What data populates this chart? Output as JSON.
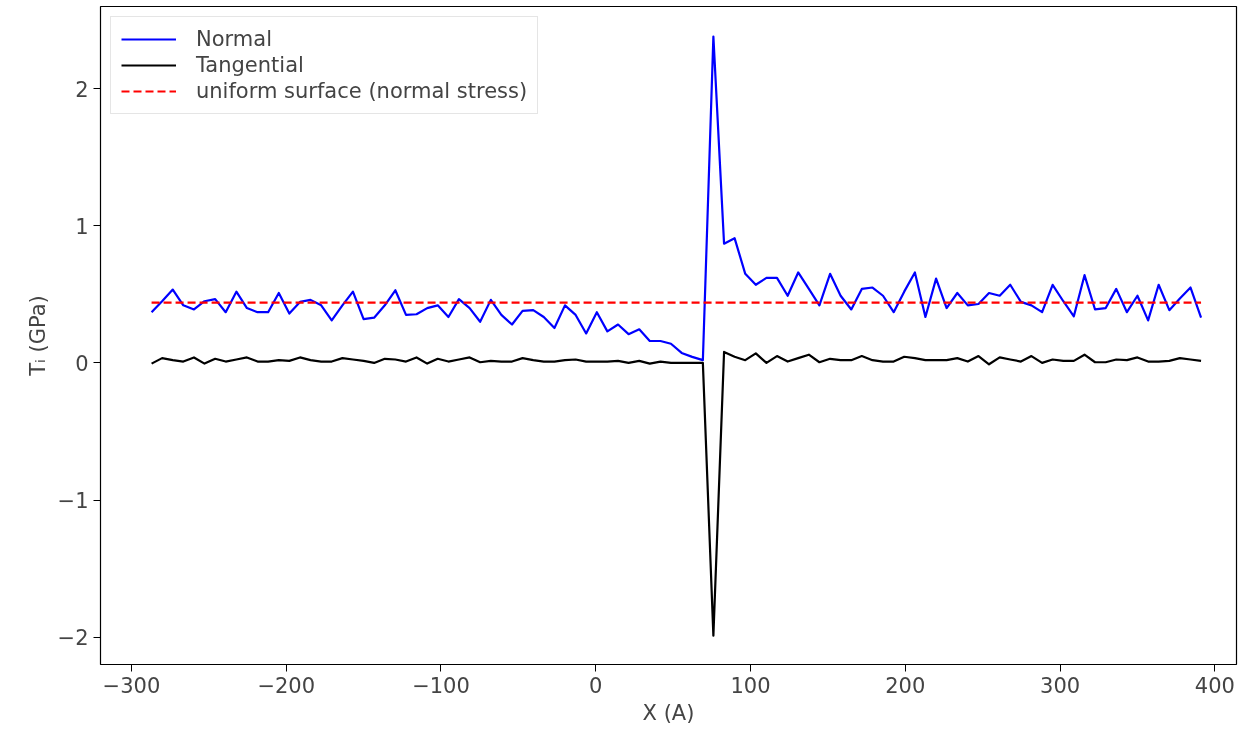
{
  "chart_data": {
    "type": "line",
    "xlabel": "X (A)",
    "ylabel": "Tᵢ (GPa)",
    "xlim": [
      -320,
      414
    ],
    "ylim": [
      -2.2,
      2.6
    ],
    "xticks": [
      {
        "value": -300,
        "label": "−300"
      },
      {
        "value": -200,
        "label": "−200"
      },
      {
        "value": -100,
        "label": "−100"
      },
      0,
      100,
      200,
      300,
      400
    ],
    "yticks": [
      {
        "value": -2,
        "label": "−2"
      },
      {
        "value": -1,
        "label": "−1"
      },
      0,
      1,
      2
    ],
    "grid": false,
    "legend": "top left",
    "marker": "none",
    "line_style": "solid",
    "x": [
      -287.0,
      -280.2,
      -273.3,
      -266.5,
      -259.6,
      -252.8,
      -245.9,
      -239.1,
      -232.2,
      -225.4,
      -218.5,
      -211.7,
      -204.8,
      -198.0,
      -191.1,
      -184.3,
      -177.4,
      -170.6,
      -163.7,
      -156.9,
      -150.0,
      -143.2,
      -136.3,
      -129.5,
      -122.6,
      -115.8,
      -108.9,
      -102.1,
      -95.2,
      -88.4,
      -81.5,
      -74.7,
      -67.8,
      -61.0,
      -54.1,
      -47.3,
      -40.4,
      -33.6,
      -26.7,
      -19.9,
      -13.0,
      -6.2,
      0.7,
      7.5,
      14.4,
      21.2,
      28.1,
      34.9,
      41.8,
      48.6,
      55.5,
      62.3,
      69.2,
      76.0,
      82.9,
      89.7,
      96.6,
      103.4,
      110.3,
      117.1,
      124.0,
      130.8,
      137.7,
      144.5,
      151.4,
      158.2,
      165.1,
      171.9,
      178.8,
      185.6,
      192.5,
      199.3,
      206.2,
      213.0,
      219.9,
      226.7,
      233.6,
      240.4,
      247.3,
      254.1,
      261.0,
      267.8,
      274.7,
      281.5,
      288.4,
      295.2,
      302.1,
      308.9,
      315.8,
      322.6,
      329.5,
      336.3,
      343.2,
      350.0,
      356.9,
      363.7,
      370.6,
      377.4,
      384.3,
      391.1
    ],
    "series": [
      {
        "name": "Normal",
        "color": "#0000ff",
        "values": [
          0.37,
          0.45,
          0.535,
          0.42,
          0.39,
          0.45,
          0.465,
          0.37,
          0.52,
          0.4,
          0.37,
          0.37,
          0.51,
          0.36,
          0.445,
          0.46,
          0.42,
          0.31,
          0.42,
          0.52,
          0.32,
          0.33,
          0.42,
          0.53,
          0.35,
          0.355,
          0.4,
          0.42,
          0.335,
          0.465,
          0.4,
          0.3,
          0.46,
          0.35,
          0.28,
          0.38,
          0.385,
          0.335,
          0.255,
          0.42,
          0.35,
          0.215,
          0.37,
          0.23,
          0.28,
          0.21,
          0.245,
          0.16,
          0.16,
          0.14,
          0.073,
          0.044,
          0.02,
          2.38,
          0.87,
          0.91,
          0.65,
          0.57,
          0.62,
          0.62,
          0.49,
          0.66,
          0.54,
          0.42,
          0.65,
          0.49,
          0.39,
          0.54,
          0.55,
          0.49,
          0.37,
          0.52,
          0.66,
          0.335,
          0.615,
          0.4,
          0.51,
          0.42,
          0.43,
          0.51,
          0.49,
          0.57,
          0.445,
          0.42,
          0.37,
          0.57,
          0.45,
          0.34,
          0.64,
          0.39,
          0.4,
          0.54,
          0.37,
          0.49,
          0.31,
          0.57,
          0.385,
          0.47,
          0.55,
          0.33
        ]
      },
      {
        "name": "Tangential",
        "color": "#000000",
        "values": [
          -0.005,
          0.035,
          0.02,
          0.01,
          0.04,
          -0.005,
          0.03,
          0.01,
          0.025,
          0.04,
          0.01,
          0.01,
          0.02,
          0.015,
          0.04,
          0.02,
          0.01,
          0.01,
          0.035,
          0.025,
          0.015,
          0.0,
          0.03,
          0.025,
          0.01,
          0.04,
          -0.005,
          0.03,
          0.01,
          0.025,
          0.04,
          0.005,
          0.015,
          0.01,
          0.01,
          0.035,
          0.02,
          0.01,
          0.01,
          0.02,
          0.025,
          0.01,
          0.01,
          0.01,
          0.015,
          0.0,
          0.015,
          -0.005,
          0.01,
          0.0,
          0.0,
          0.0,
          0.0,
          -1.99,
          0.08,
          0.045,
          0.02,
          0.07,
          0.0,
          0.05,
          0.01,
          0.035,
          0.06,
          0.005,
          0.03,
          0.02,
          0.02,
          0.05,
          0.02,
          0.01,
          0.01,
          0.045,
          0.035,
          0.02,
          0.02,
          0.02,
          0.035,
          0.01,
          0.05,
          -0.01,
          0.04,
          0.025,
          0.01,
          0.05,
          0.0,
          0.025,
          0.015,
          0.015,
          0.06,
          0.005,
          0.005,
          0.025,
          0.02,
          0.04,
          0.01,
          0.01,
          0.015,
          0.035,
          0.025,
          0.015
        ]
      },
      {
        "name": "uniform surface (normal stress)",
        "color": "#ff0000",
        "line_style": "dashed",
        "x": [
          -287.0,
          391.1
        ],
        "values": [
          0.44,
          0.44
        ]
      }
    ]
  }
}
